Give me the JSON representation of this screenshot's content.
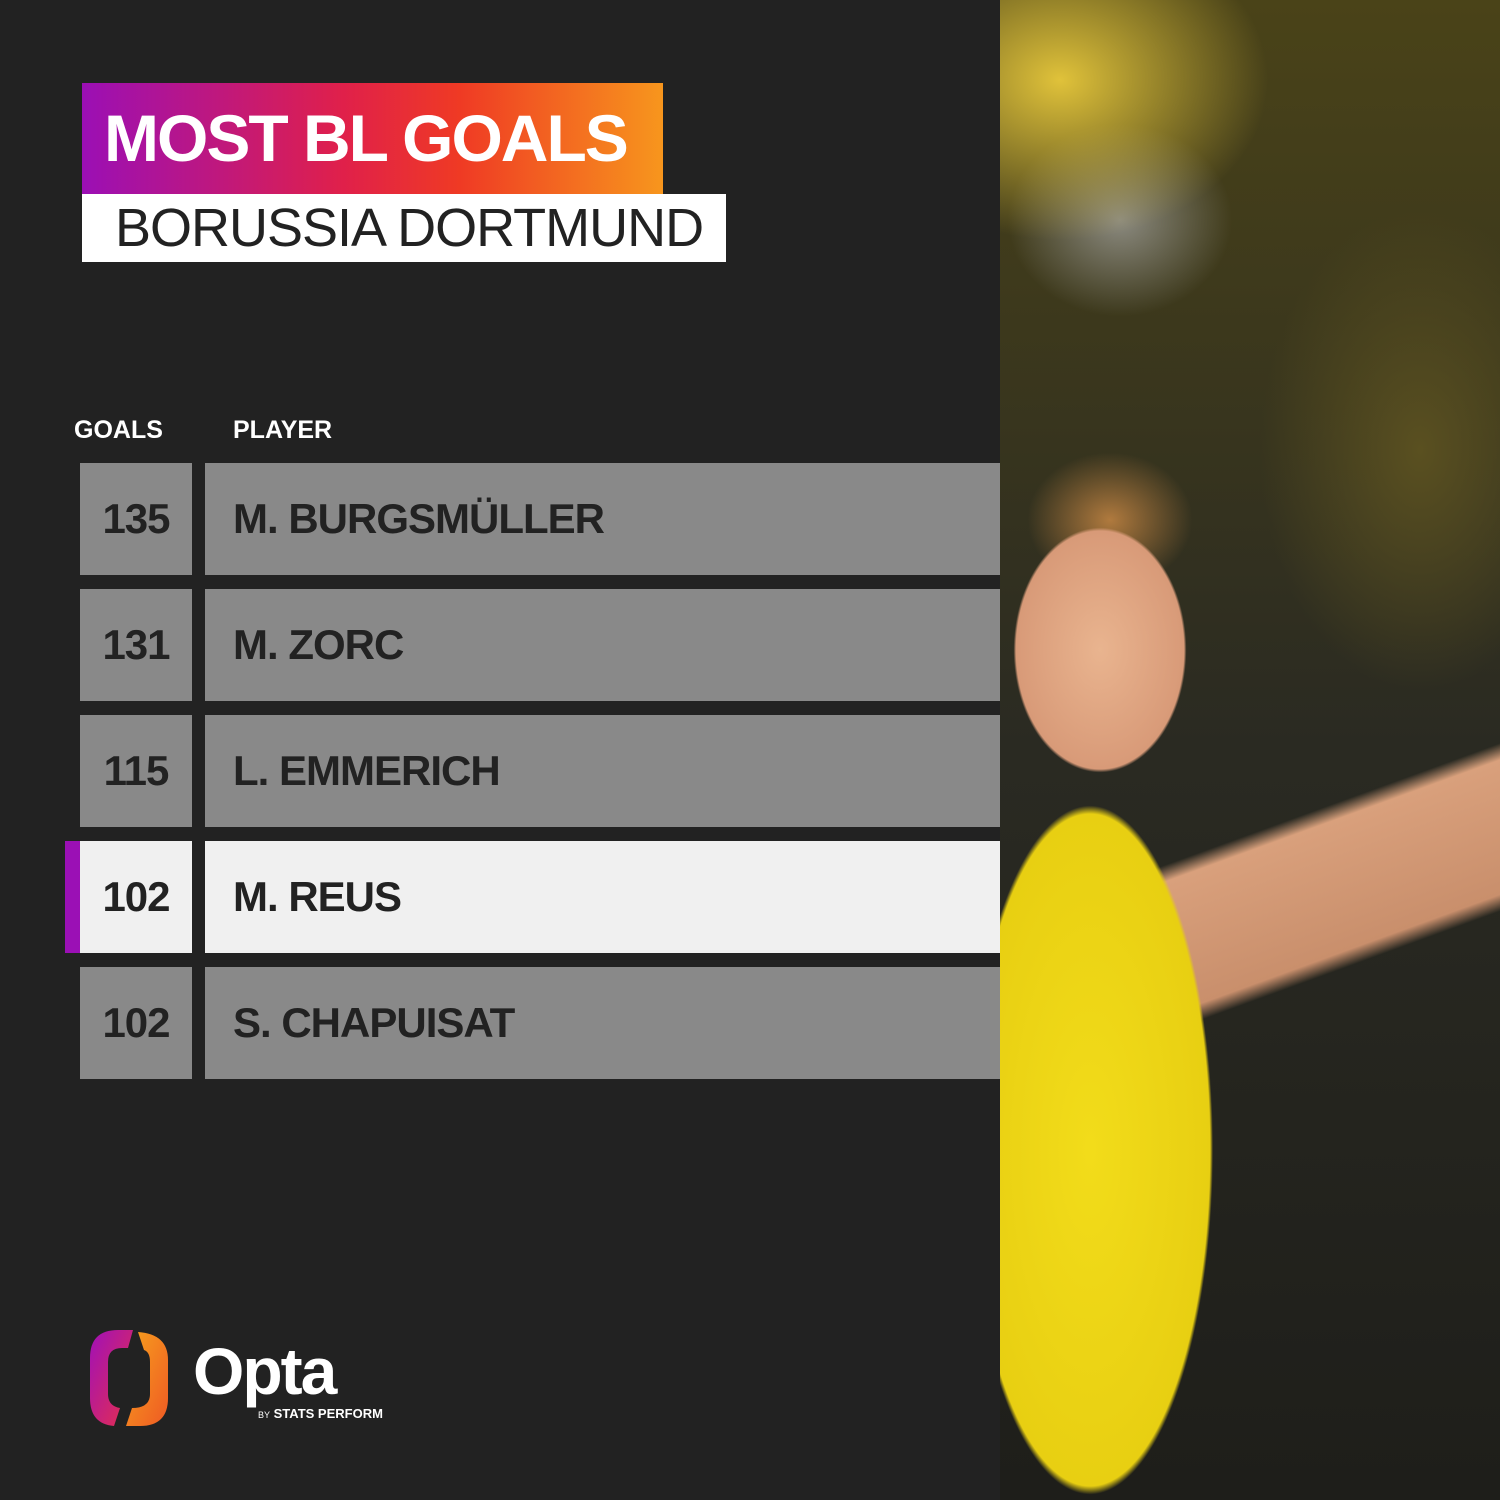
{
  "title": "MOST BL GOALS",
  "subtitle": "BORUSSIA DORTMUND",
  "chart_data": {
    "type": "table",
    "columns": [
      "GOALS",
      "PLAYER"
    ],
    "rows": [
      {
        "goals": "135",
        "player": "M. BURGSMÜLLER",
        "highlighted": false
      },
      {
        "goals": "131",
        "player": "M. ZORC",
        "highlighted": false
      },
      {
        "goals": "115",
        "player": "L. EMMERICH",
        "highlighted": false
      },
      {
        "goals": "102",
        "player": "M. REUS",
        "highlighted": true
      },
      {
        "goals": "102",
        "player": "S. CHAPUISAT",
        "highlighted": false
      }
    ]
  },
  "colors": {
    "highlight_bar": "#9b10b5",
    "row": "#898989",
    "row_highlight": "#f0f0f0",
    "background": "#222222"
  },
  "logo": {
    "name": "Opta",
    "tagline_by": "BY",
    "tagline": "STATS PERFORM"
  }
}
